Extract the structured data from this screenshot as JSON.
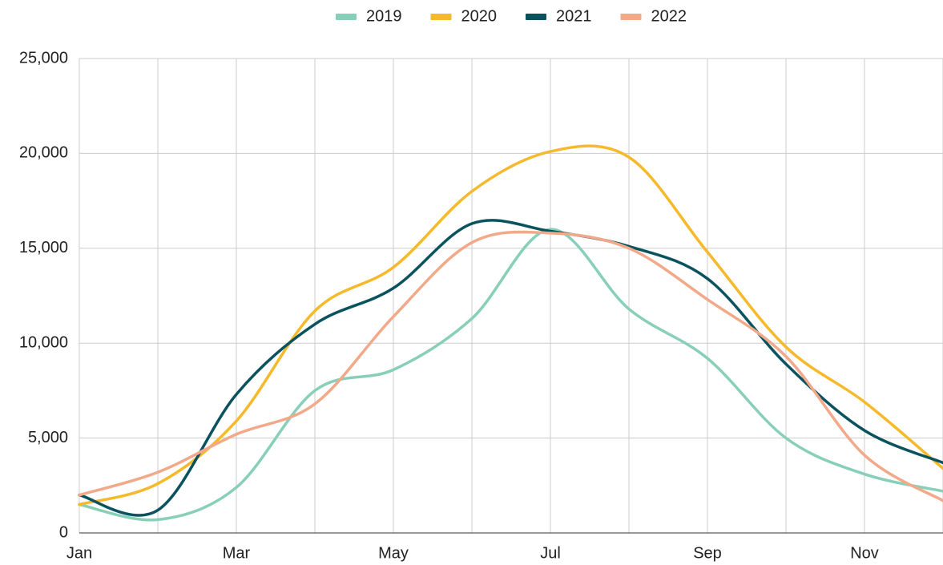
{
  "chart_data": {
    "type": "line",
    "smooth": true,
    "legend": "top",
    "grid": true,
    "categories": [
      "Jan",
      null,
      "Mar",
      null,
      "May",
      null,
      "Jul",
      null,
      "Sep",
      null,
      "Nov",
      null
    ],
    "ylim": [
      0,
      25000
    ],
    "yticks": [
      0,
      {
        "value": 5000,
        "label": "5,000"
      },
      {
        "value": 10000,
        "label": "10,000"
      },
      {
        "value": 15000,
        "label": "15,000"
      },
      {
        "value": 20000,
        "label": "20,000"
      },
      {
        "value": 25000,
        "label": "25,000"
      }
    ],
    "series": [
      {
        "name": "2019",
        "color": "#88cfb9",
        "values": [
          1500,
          700,
          2400,
          7500,
          8600,
          11300,
          16000,
          11800,
          9200,
          5000,
          3100,
          2200
        ]
      },
      {
        "name": "2020",
        "color": "#f6b92b",
        "values": [
          1500,
          2600,
          5900,
          11700,
          14000,
          18000,
          20100,
          19800,
          14800,
          9800,
          6900,
          3400
        ]
      },
      {
        "name": "2021",
        "color": "#0a535e",
        "values": [
          2000,
          1200,
          7300,
          11000,
          12900,
          16300,
          15900,
          15100,
          13400,
          8900,
          5400,
          3700
        ]
      },
      {
        "name": "2022",
        "color": "#f2a98a",
        "values": [
          2000,
          3200,
          5200,
          6800,
          11400,
          15300,
          15800,
          15000,
          12300,
          9300,
          4100,
          1700
        ]
      }
    ]
  }
}
